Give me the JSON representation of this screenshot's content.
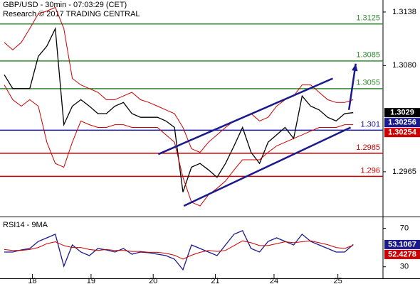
{
  "chart_data": [
    {
      "type": "line",
      "title": "GBP/USD - 30min - 07:03:29 (CET)",
      "subtitle": "Research © 2017 TRADING CENTRAL",
      "xlim": [
        0,
        45
      ],
      "ylim": [
        1.2918,
        1.3151
      ],
      "yticks": [
        1.3138,
        {
          "value": 1.308,
          "label": "1.3080"
        },
        1.2965
      ],
      "series": [
        {
          "color": "#000000",
          "values": [
            1.307,
            1.3055,
            1.3055,
            1.3055,
            1.309,
            1.3101,
            1.312,
            1.3016,
            1.3036,
            1.3043,
            1.3036,
            1.3028,
            1.3028,
            1.3036,
            1.304,
            1.3028,
            1.3024,
            1.3024,
            1.3024,
            1.302,
            1.3013,
            1.2943,
            1.297,
            1.2974,
            1.2967,
            1.2959,
            1.2974,
            1.2993,
            1.3013,
            1.2986,
            1.2974,
            1.2997,
            1.3005,
            1.3013,
            1.3001,
            1.3047,
            1.3036,
            1.3032,
            1.3024,
            1.302,
            1.3028,
            1.3029
          ]
        },
        {
          "color": "#cc0000",
          "values": [
            1.3105,
            1.3097,
            1.3105,
            1.312,
            1.3136,
            1.3139,
            1.3143,
            1.312,
            1.3066,
            1.3059,
            1.3055,
            1.3051,
            1.3043,
            1.3043,
            1.3047,
            1.3051,
            1.3043,
            1.304,
            1.3036,
            1.3032,
            1.3028,
            1.3013,
            1.299,
            1.2986,
            1.2997,
            1.3005,
            1.3013,
            1.302,
            1.3024,
            1.3028,
            1.302,
            1.3024,
            1.3036,
            1.3043,
            1.3047,
            1.3059,
            1.3059,
            1.3051,
            1.3043,
            1.304,
            1.304,
            1.3043
          ]
        },
        {
          "color": "#cc0000",
          "values": [
            1.3059,
            1.3043,
            1.3036,
            1.3043,
            1.3036,
            1.2997,
            1.2974,
            1.297,
            1.2997,
            1.302,
            1.3016,
            1.3013,
            1.3013,
            1.3016,
            1.3016,
            1.3013,
            1.3013,
            1.3013,
            1.3013,
            1.3005,
            1.2997,
            1.2959,
            1.2932,
            1.2928,
            1.294,
            1.2947,
            1.2955,
            1.2967,
            1.2978,
            1.2978,
            1.2978,
            1.2986,
            1.2993,
            1.2997,
            1.3001,
            1.3005,
            1.3009,
            1.3013,
            1.3013,
            1.3013,
            1.3016,
            1.3016
          ]
        }
      ],
      "levels": [
        {
          "value": 1.3125,
          "color": "#2e8b2e"
        },
        {
          "value": 1.3085,
          "color": "#2e8b2e"
        },
        {
          "value": 1.3055,
          "color": "#2e8b2e"
        },
        {
          "value": 1.301,
          "color": "#1a1a8c"
        },
        {
          "value": 1.2985,
          "color": "#cc0000"
        },
        {
          "value": 1.296,
          "color": "#cc0000"
        }
      ],
      "channels": [
        {
          "x": [
            18.6,
            39.1
          ],
          "y": [
            1.2984,
            1.3066
          ]
        },
        {
          "x": [
            21.6,
            41.2
          ],
          "y": [
            1.2928,
            1.3013
          ]
        }
      ],
      "arrow": {
        "x": [
          41.0,
          41.8
        ],
        "y": [
          1.3032,
          1.3082
        ]
      },
      "channel_color": "#1a1a8c",
      "price_tags": [
        {
          "value": 1.3029,
          "color": "#000000"
        },
        {
          "value": 1.30256,
          "color": "#1a1a8c"
        },
        {
          "value": 1.30254,
          "color": "#cc0000"
        }
      ]
    },
    {
      "type": "line",
      "title": "RSI14 - 9MA",
      "xlim": [
        0,
        45
      ],
      "ylim": [
        18,
        80
      ],
      "yticks": [
        70,
        30
      ],
      "xticks": [
        {
          "value": 3.8,
          "label": "18"
        },
        {
          "value": 10.7,
          "label": "19"
        },
        {
          "value": 18.0,
          "label": "20"
        },
        {
          "value": 25.3,
          "label": "21"
        },
        {
          "value": 32.2,
          "label": "24"
        },
        {
          "value": 39.7,
          "label": "25"
        }
      ],
      "series": [
        {
          "color": "#1a1a8c",
          "values": [
            45.3,
            45.3,
            47.5,
            49,
            56.4,
            60.1,
            63.8,
            30.6,
            52.7,
            45.3,
            41.6,
            49,
            47.5,
            45.3,
            49,
            43.1,
            45.3,
            44.6,
            43.1,
            41.6,
            37.9,
            26.9,
            52.7,
            49,
            45.3,
            41.6,
            52.7,
            63.8,
            67.5,
            49,
            45.3,
            56.4,
            60.1,
            56.4,
            52.7,
            63.8,
            56.4,
            52.7,
            49,
            45.3,
            45.3,
            53.1
          ]
        },
        {
          "color": "#cc0000",
          "values": [
            48,
            47,
            47,
            48,
            50,
            54,
            56,
            52,
            50,
            50,
            48,
            47,
            48,
            47,
            47,
            46,
            46,
            45,
            45,
            44,
            42,
            38,
            42,
            45,
            47,
            46,
            47,
            52,
            57,
            55,
            52,
            52,
            54,
            56,
            55,
            56,
            57,
            55,
            53,
            50,
            49,
            52.4
          ]
        }
      ],
      "price_tags": [
        {
          "value": 53.1067,
          "color": "#1a1a8c"
        },
        {
          "value": 52.4278,
          "color": "#cc0000"
        }
      ]
    }
  ]
}
